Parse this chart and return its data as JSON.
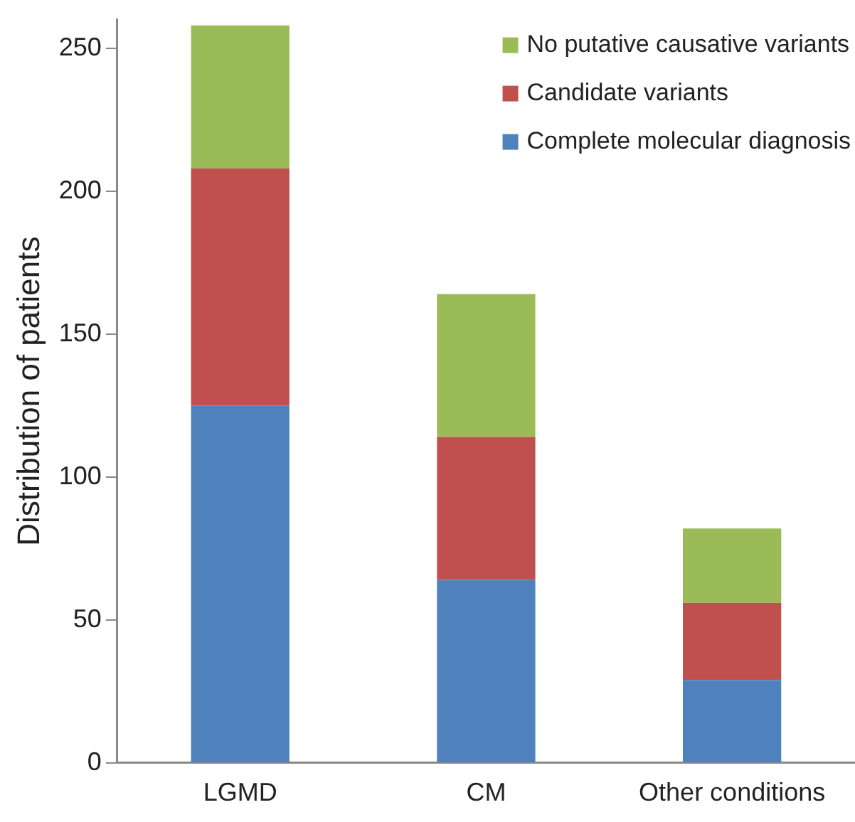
{
  "chart_data": {
    "type": "bar",
    "stacked": true,
    "ylabel": "Distribution of patients",
    "categories": [
      "LGMD",
      "CM",
      "Other conditions"
    ],
    "series": [
      {
        "name": "Complete molecular diagnosis",
        "color": "#4f81bd",
        "values": [
          125,
          64,
          29
        ]
      },
      {
        "name": "Candidate variants",
        "color": "#c0504d",
        "values": [
          83,
          50,
          27
        ]
      },
      {
        "name": "No putative causative variants",
        "color": "#9bbb59",
        "values": [
          50,
          50,
          26
        ]
      }
    ],
    "ylim": [
      0,
      260
    ],
    "yticks": [
      0,
      50,
      100,
      150,
      200,
      250
    ],
    "grid": false,
    "legend": "top right"
  }
}
